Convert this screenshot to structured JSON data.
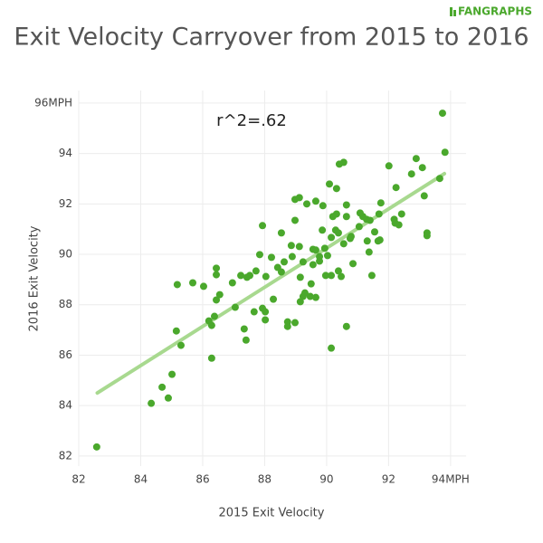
{
  "chart_data": {
    "type": "scatter",
    "logo": "FANGRAPHS",
    "title": "Exit Velocity Carryover from 2015 to 2016",
    "annotation": "r^2=.62",
    "x_label": "2015 Exit Velocity",
    "y_label": "2016 Exit Velocity",
    "color": "#4aa82c",
    "grid": true,
    "xlim": [
      82,
      94.5
    ],
    "ylim": [
      81.6,
      96.5
    ],
    "xticks": [
      82,
      84,
      86,
      88,
      90,
      92,
      {
        "value": 94,
        "label": "94MPH"
      }
    ],
    "yticks": [
      82,
      84,
      86,
      88,
      90,
      92,
      94,
      {
        "value": 96,
        "label": "96MPH"
      }
    ],
    "trend_line": {
      "color": "#a8d98f",
      "x": [
        82.6,
        93.8
      ],
      "y": [
        84.5,
        93.2
      ]
    },
    "x": [
      82.58,
      84.34,
      84.69,
      84.89,
      85.01,
      85.15,
      85.3,
      85.18,
      85.68,
      86.03,
      86.2,
      86.29,
      86.29,
      86.38,
      86.44,
      86.55,
      86.44,
      86.44,
      86.96,
      87.05,
      87.23,
      87.34,
      87.4,
      87.43,
      87.52,
      87.66,
      87.72,
      87.84,
      87.93,
      87.93,
      88.02,
      88.02,
      88.04,
      88.28,
      88.22,
      88.42,
      88.54,
      88.54,
      88.63,
      88.74,
      88.74,
      88.86,
      88.89,
      88.98,
      88.98,
      88.98,
      89.12,
      89.12,
      89.15,
      89.15,
      89.24,
      89.3,
      89.24,
      89.36,
      89.47,
      89.5,
      89.56,
      89.65,
      89.56,
      89.65,
      89.65,
      89.77,
      89.77,
      89.86,
      89.88,
      89.94,
      89.97,
      90.15,
      90.03,
      90.09,
      90.15,
      90.15,
      90.2,
      90.32,
      90.32,
      90.29,
      90.38,
      90.38,
      90.47,
      90.41,
      90.55,
      90.55,
      90.64,
      90.64,
      90.64,
      90.76,
      90.79,
      90.85,
      91.05,
      91.08,
      91.17,
      91.29,
      91.31,
      91.37,
      91.4,
      91.46,
      91.55,
      91.66,
      91.69,
      91.72,
      91.75,
      92.01,
      92.18,
      92.21,
      92.24,
      92.33,
      92.42,
      92.74,
      92.89,
      93.09,
      93.15,
      93.24,
      93.24,
      93.65,
      93.74,
      93.82
    ],
    "y": [
      82.36,
      84.09,
      84.73,
      84.3,
      85.24,
      86.96,
      86.39,
      88.8,
      88.87,
      88.73,
      87.36,
      87.18,
      85.88,
      87.54,
      88.19,
      88.4,
      89.19,
      89.45,
      88.87,
      87.9,
      89.16,
      87.04,
      86.6,
      89.09,
      89.16,
      87.72,
      89.34,
      89.99,
      91.14,
      87.86,
      87.72,
      87.4,
      89.12,
      88.22,
      89.88,
      89.48,
      89.3,
      90.85,
      89.7,
      87.32,
      87.14,
      90.35,
      89.91,
      87.29,
      91.35,
      92.18,
      92.25,
      90.31,
      89.09,
      88.12,
      88.33,
      88.47,
      89.7,
      92.0,
      88.33,
      88.83,
      89.59,
      92.11,
      90.2,
      90.17,
      88.29,
      89.91,
      89.73,
      90.96,
      91.93,
      90.24,
      89.16,
      89.16,
      89.95,
      92.79,
      86.28,
      90.67,
      91.5,
      91.6,
      92.61,
      90.96,
      90.85,
      89.34,
      89.12,
      93.58,
      93.65,
      90.42,
      91.5,
      87.14,
      91.96,
      90.63,
      90.71,
      89.63,
      91.1,
      91.64,
      91.5,
      91.39,
      90.53,
      90.09,
      91.35,
      89.16,
      90.89,
      90.53,
      91.6,
      90.57,
      92.04,
      93.51,
      91.39,
      91.24,
      92.65,
      91.17,
      91.6,
      93.19,
      93.8,
      93.44,
      92.32,
      90.85,
      90.74,
      93.01,
      95.6,
      94.05
    ]
  }
}
